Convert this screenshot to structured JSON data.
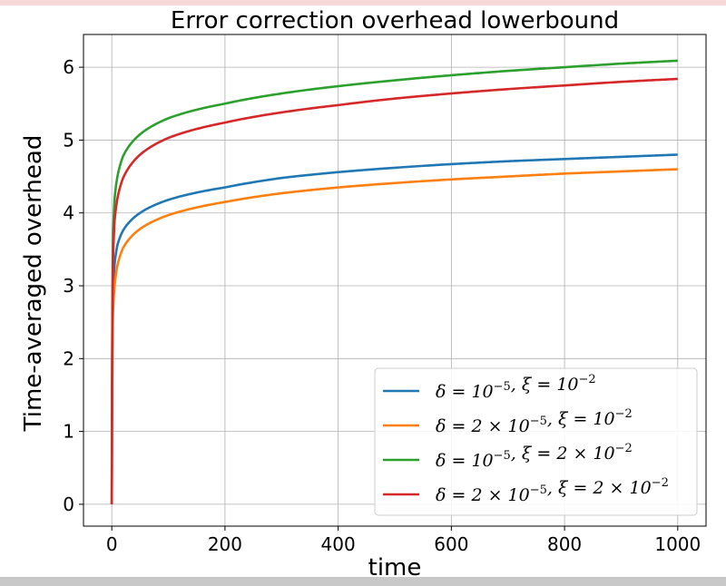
{
  "chart_data": {
    "type": "line",
    "title": "Error correction overhead lowerbound",
    "xlabel": "time",
    "ylabel": "Time-averaged overhead",
    "xlim": [
      -50,
      1050
    ],
    "ylim": [
      -0.3,
      6.45
    ],
    "xticks": [
      0,
      200,
      400,
      600,
      800,
      1000
    ],
    "xtick_labels": [
      "0",
      "200",
      "400",
      "600",
      "800",
      "1000"
    ],
    "yticks": [
      0,
      1,
      2,
      3,
      4,
      5,
      6
    ],
    "ytick_labels": [
      "0",
      "1",
      "2",
      "3",
      "4",
      "5",
      "6"
    ],
    "grid": true,
    "legend_position": "lower-right",
    "x": [
      0,
      2,
      5,
      10,
      20,
      50,
      100,
      200,
      300,
      400,
      500,
      600,
      700,
      800,
      900,
      1000
    ],
    "series": [
      {
        "name": "δ = 10⁻⁵,  ξ = 10⁻²",
        "color": "#1f77b4",
        "values": [
          0.0,
          2.9,
          3.3,
          3.56,
          3.76,
          4.0,
          4.18,
          4.35,
          4.48,
          4.56,
          4.62,
          4.67,
          4.71,
          4.74,
          4.77,
          4.8
        ]
      },
      {
        "name": "δ = 2 × 10⁻⁵,  ξ = 10⁻²",
        "color": "#ff7f0e",
        "values": [
          0.0,
          2.6,
          3.0,
          3.28,
          3.52,
          3.78,
          3.97,
          4.15,
          4.27,
          4.35,
          4.41,
          4.46,
          4.5,
          4.54,
          4.57,
          4.6
        ]
      },
      {
        "name": "δ = 10⁻⁵,  ξ = 2 × 10⁻²",
        "color": "#2ca02c",
        "values": [
          0.0,
          3.6,
          4.2,
          4.5,
          4.78,
          5.08,
          5.3,
          5.5,
          5.64,
          5.74,
          5.82,
          5.89,
          5.95,
          6.0,
          6.05,
          6.09
        ]
      },
      {
        "name": "δ = 2 × 10⁻⁵,  ξ = 2 × 10⁻²",
        "color": "#d62728",
        "values": [
          0.0,
          3.3,
          3.9,
          4.2,
          4.48,
          4.8,
          5.03,
          5.24,
          5.38,
          5.48,
          5.57,
          5.64,
          5.7,
          5.75,
          5.8,
          5.84
        ]
      }
    ],
    "legend": [
      {
        "delta": "δ = 10",
        "delta_exp": "−5",
        "delta_tail": ",  ξ = 10",
        "xi_exp": "−2",
        "xi_tail": ""
      },
      {
        "delta": "δ = 2 × 10",
        "delta_exp": "−5",
        "delta_tail": ",  ξ = 10",
        "xi_exp": "−2",
        "xi_tail": ""
      },
      {
        "delta": "δ = 10",
        "delta_exp": "−5",
        "delta_tail": ",  ξ = 2 × 10",
        "xi_exp": "−2",
        "xi_tail": ""
      },
      {
        "delta": "δ = 2 × 10",
        "delta_exp": "−5",
        "delta_tail": ",  ξ = 2 × 10",
        "xi_exp": "−2",
        "xi_tail": ""
      }
    ]
  }
}
